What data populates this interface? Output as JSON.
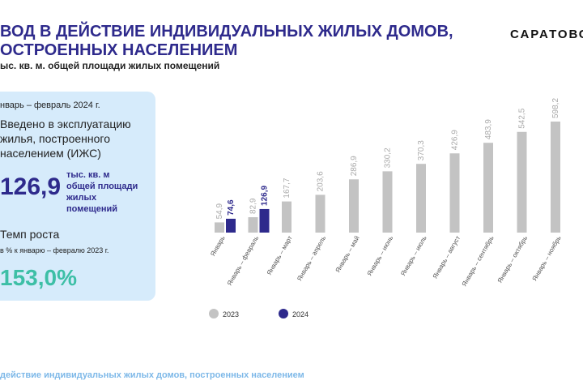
{
  "header": {
    "title": [
      "ВОД В ДЕЙСТВИЕ ИНДИВИДУАЛЬНЫХ ЖИЛЫХ ДОМОВ,",
      "ОСТРОЕННЫХ НАСЕЛЕНИЕМ"
    ],
    "subtitle": "ыс. кв. м. общей площади жилых помещений",
    "logo": "САРАТОВС"
  },
  "panel": {
    "period": "нварь – февраль 2024 г.",
    "intro": [
      "Введено в эксплуатацию",
      "жилья, построенного",
      "населением (ИЖС)"
    ],
    "total": "126,9",
    "total_unit": [
      "тыс. кв. м",
      "общей площади",
      "жилых",
      "помещений"
    ],
    "growth_title": "Темп роста",
    "growth_note": "в % к январю – февралю  2023 г.",
    "growth": "153,0%"
  },
  "footer": "действие индивидуальных жилых домов, построенных населением",
  "chart_data": {
    "type": "bar",
    "categories": [
      "Январь",
      "Январь – февраль",
      "Январь – март",
      "Январь – апрель",
      "Январь – май",
      "Январь – июнь",
      "Январь – июль",
      "Январь – август",
      "Январь – сентябрь",
      "Январь – октябрь",
      "Январь – ноябрь"
    ],
    "series": [
      {
        "name": "2023",
        "color": "#c3c3c3",
        "values": [
          54.9,
          82.9,
          167.7,
          203.6,
          286.9,
          330.2,
          370.3,
          426.9,
          483.9,
          542.5,
          598.2
        ],
        "value_labels": [
          "54,9",
          "82,9",
          "167,7",
          "203,6",
          "286,9",
          "330,2",
          "370,3",
          "426,9",
          "483,9",
          "542,5",
          "598,2"
        ]
      },
      {
        "name": "2024",
        "color": "#2e2a8c",
        "values": [
          74.6,
          126.9,
          null,
          null,
          null,
          null,
          null,
          null,
          null,
          null,
          null
        ],
        "value_labels": [
          "74,6",
          "126,9",
          null,
          null,
          null,
          null,
          null,
          null,
          null,
          null,
          null
        ]
      }
    ]
  }
}
